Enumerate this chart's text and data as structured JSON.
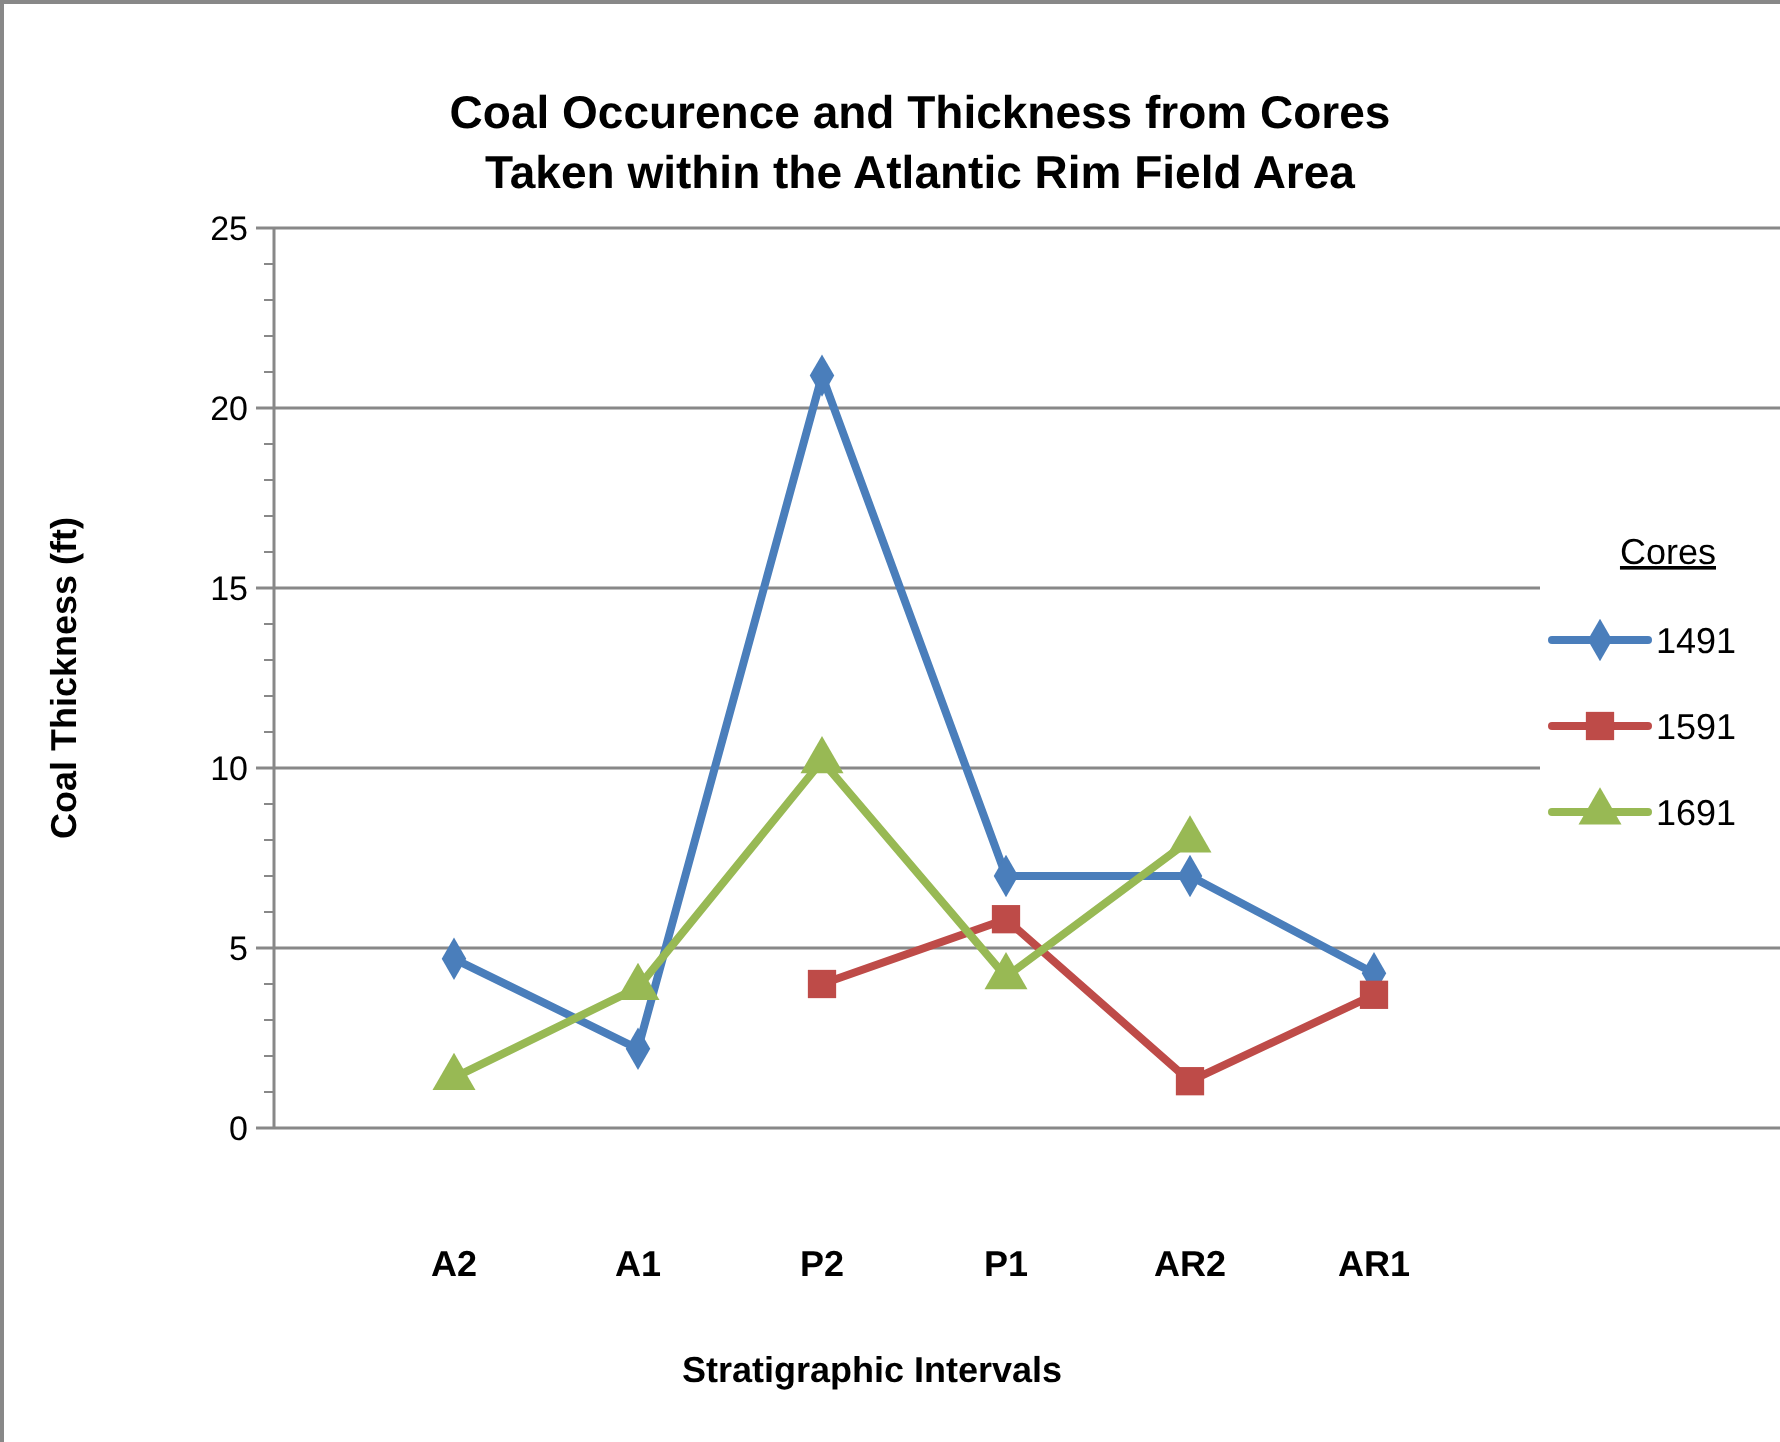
{
  "chart_data": {
    "type": "line",
    "title": "Coal Occurence and Thickness from Cores\nTaken within the Atlantic Rim Field Area",
    "xlabel": "Stratigraphic Intervals",
    "ylabel": "Coal Thickness (ft)",
    "legend_title": "Cores",
    "legend": "right",
    "grid": "y",
    "categories": [
      "A2",
      "A1",
      "P2",
      "P1",
      "AR2",
      "AR1"
    ],
    "ylim": [
      0,
      25
    ],
    "yticks": [
      0,
      5,
      10,
      15,
      20,
      25
    ],
    "series": [
      {
        "name": "1491",
        "color": "#4a7ebb",
        "marker": "diamond",
        "values": [
          4.7,
          2.2,
          20.9,
          7.0,
          7.0,
          4.3
        ]
      },
      {
        "name": "1591",
        "color": "#be4b48",
        "marker": "square",
        "values": [
          null,
          null,
          4.0,
          5.8,
          1.3,
          3.7
        ]
      },
      {
        "name": "1691",
        "color": "#98b954",
        "marker": "triangle",
        "values": [
          1.4,
          3.9,
          10.2,
          4.2,
          8.0,
          null
        ]
      }
    ]
  }
}
